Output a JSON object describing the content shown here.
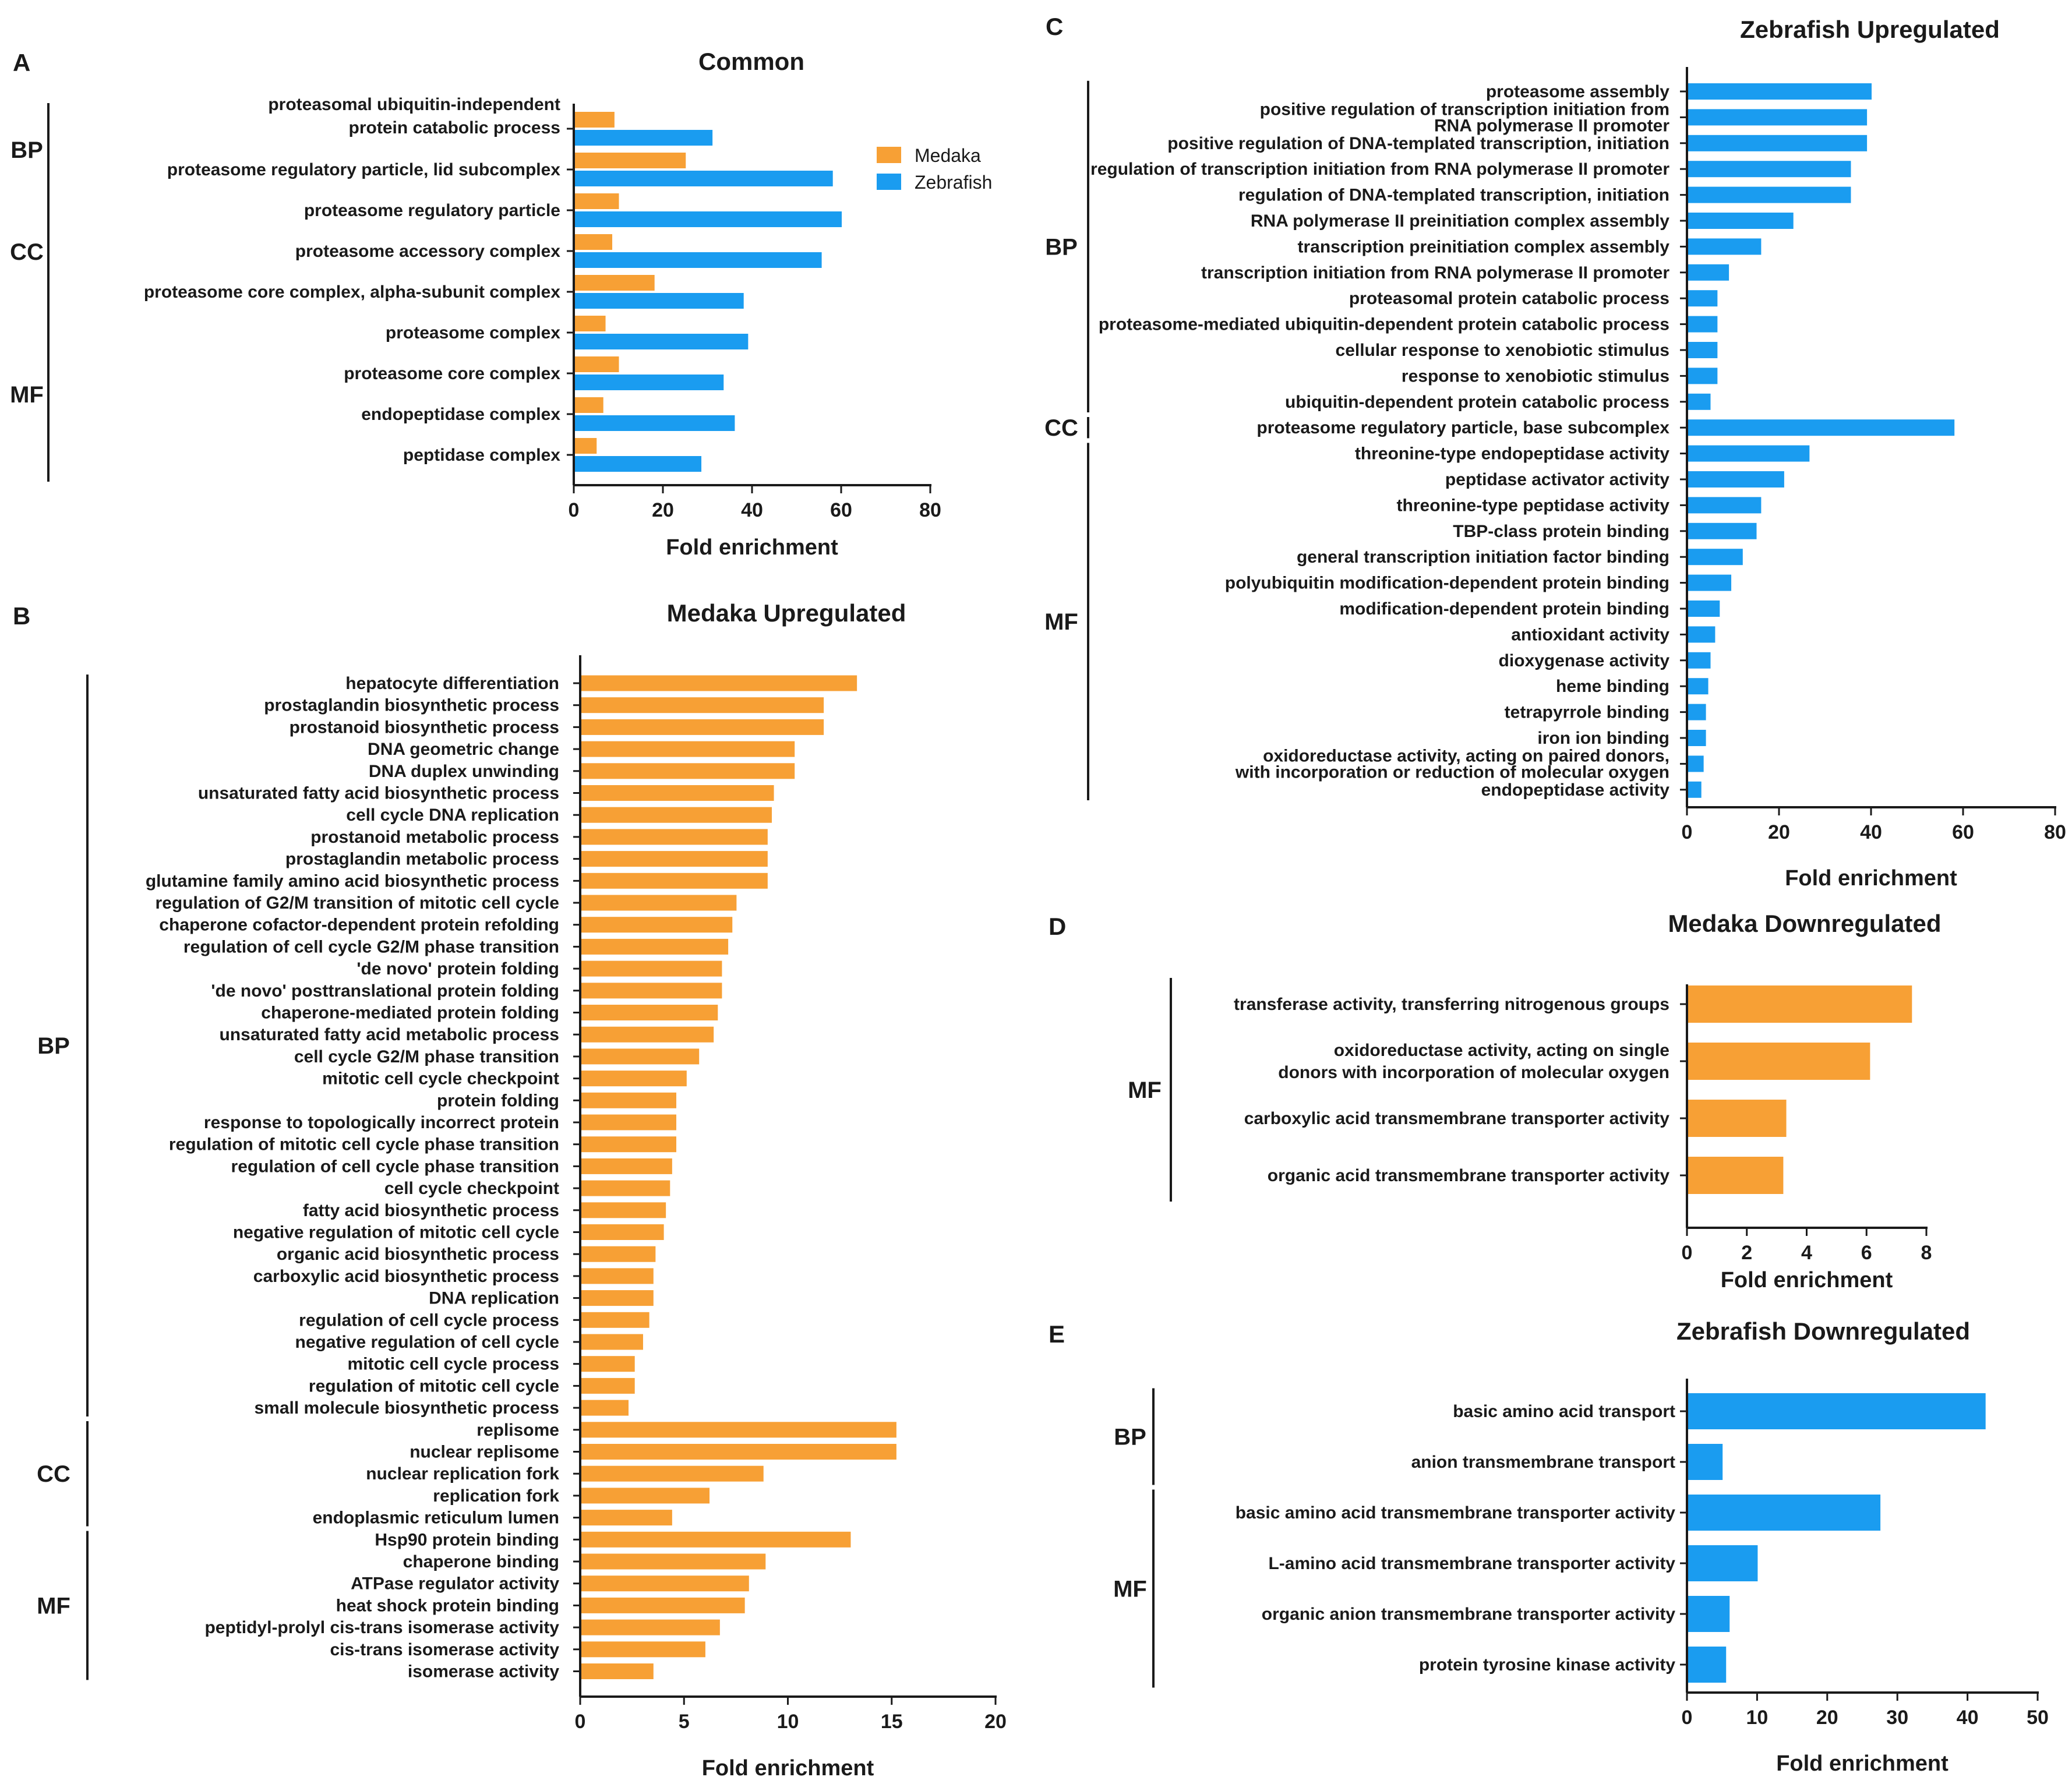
{
  "colors": {
    "medaka": "#f7a035",
    "zebrafish": "#1a9cf0",
    "axis": "#1a1a1a"
  },
  "legend": [
    "Medaka",
    "Zebrafish"
  ],
  "chart_data": [
    {
      "id": "A",
      "type": "bar",
      "orientation": "horizontal",
      "title": "Common",
      "xlabel": "Fold enrichment",
      "ylabel": "",
      "xlim": [
        0,
        80
      ],
      "xticks": [
        0,
        20,
        40,
        60,
        80
      ],
      "categories": [
        "proteasomal ubiquitin-independent protein catabolic process",
        "proteasome regulatory particle, lid subcomplex",
        "proteasome regulatory particle",
        "proteasome accessory complex",
        "proteasome core complex, alpha-subunit complex",
        "proteasome complex",
        "proteasome core complex",
        "endopeptidase complex",
        "peptidase complex"
      ],
      "category_lines": [
        [
          "proteasomal ubiquitin-independent",
          "protein catabolic process"
        ],
        [
          "proteasome regulatory particle, lid subcomplex"
        ],
        [
          "proteasome regulatory particle"
        ],
        [
          "proteasome accessory complex"
        ],
        [
          "proteasome core complex, alpha-subunit complex"
        ],
        [
          "proteasome complex"
        ],
        [
          "proteasome core complex"
        ],
        [
          "endopeptidase complex"
        ],
        [
          "peptidase complex"
        ]
      ],
      "series": [
        {
          "name": "Medaka",
          "values": [
            9,
            25,
            10,
            8.5,
            18,
            7,
            10,
            6.5,
            5
          ]
        },
        {
          "name": "Zebrafish",
          "values": [
            31,
            58,
            60,
            55.5,
            38,
            39,
            33.5,
            36,
            28.5
          ]
        }
      ],
      "groups": [
        {
          "label": "BP",
          "start": 0,
          "end": 1
        },
        {
          "label": "CC",
          "start": 2,
          "end": 4
        },
        {
          "label": "MF",
          "start": 5,
          "end": 8
        }
      ]
    },
    {
      "id": "B",
      "type": "bar",
      "orientation": "horizontal",
      "title": "Medaka Upregulated",
      "xlabel": "Fold enrichment",
      "ylabel": "",
      "xlim": [
        0,
        20
      ],
      "xticks": [
        0,
        5,
        10,
        15,
        20
      ],
      "categories": [
        "hepatocyte differentiation",
        "prostaglandin biosynthetic process",
        "prostanoid biosynthetic process",
        "DNA geometric change",
        "DNA duplex unwinding",
        "unsaturated fatty acid biosynthetic process",
        "cell cycle DNA replication",
        "prostanoid metabolic process",
        "prostaglandin metabolic process",
        "glutamine family amino acid biosynthetic process",
        "regulation of G2/M transition of mitotic cell cycle",
        "chaperone cofactor-dependent protein refolding",
        "regulation of cell cycle G2/M phase transition",
        "'de novo' protein folding",
        "'de novo' posttranslational protein folding",
        "chaperone-mediated protein folding",
        "unsaturated fatty acid metabolic process",
        "cell cycle G2/M phase transition",
        "mitotic cell cycle checkpoint",
        "protein folding",
        "response to topologically incorrect protein",
        "regulation of mitotic cell cycle phase transition",
        "regulation of cell cycle phase transition",
        "cell cycle checkpoint",
        "fatty acid biosynthetic process",
        "negative regulation of mitotic cell cycle",
        "organic acid biosynthetic process",
        "carboxylic acid biosynthetic process",
        "DNA replication",
        "regulation of cell cycle process",
        "negative regulation of cell cycle",
        "mitotic cell cycle process",
        "regulation of mitotic cell cycle",
        "small molecule biosynthetic process",
        "replisome",
        "nuclear replisome",
        "nuclear replication fork",
        "replication fork",
        "endoplasmic reticulum lumen",
        "Hsp90 protein binding",
        "chaperone binding",
        "ATPase regulator activity",
        "heat shock protein binding",
        "peptidyl-prolyl cis-trans isomerase activity",
        "cis-trans isomerase activity",
        "isomerase activity"
      ],
      "series": [
        {
          "name": "",
          "values": [
            13.3,
            11.7,
            11.7,
            10.3,
            10.3,
            9.3,
            9.2,
            9.0,
            9.0,
            9.0,
            7.5,
            7.3,
            7.1,
            6.8,
            6.8,
            6.6,
            6.4,
            5.7,
            5.1,
            4.6,
            4.6,
            4.6,
            4.4,
            4.3,
            4.1,
            4.0,
            3.6,
            3.5,
            3.5,
            3.3,
            3.0,
            2.6,
            2.6,
            2.3,
            15.2,
            15.2,
            8.8,
            6.2,
            4.4,
            13.0,
            8.9,
            8.1,
            7.9,
            6.7,
            6.0,
            3.5
          ]
        }
      ],
      "groups": [
        {
          "label": "BP",
          "start": 0,
          "end": 33
        },
        {
          "label": "CC",
          "start": 34,
          "end": 38
        },
        {
          "label": "MF",
          "start": 39,
          "end": 45
        }
      ]
    },
    {
      "id": "C",
      "type": "bar",
      "orientation": "horizontal",
      "title": "Zebrafish Upregulated",
      "xlabel": "Fold enrichment",
      "ylabel": "",
      "xlim": [
        0,
        80
      ],
      "xticks": [
        0,
        20,
        40,
        60,
        80
      ],
      "categories": [
        "proteasome assembly",
        "positive regulation of transcription initiation from RNA polymerase II promoter",
        "positive regulation of DNA-templated transcription, initiation",
        "regulation of transcription initiation from RNA polymerase II promoter",
        "regulation of DNA-templated transcription, initiation",
        "RNA polymerase II preinitiation complex assembly",
        "transcription preinitiation complex assembly",
        "transcription initiation from RNA polymerase II promoter",
        "proteasomal protein catabolic process",
        "proteasome-mediated ubiquitin-dependent protein catabolic process",
        "cellular response to xenobiotic stimulus",
        "response to xenobiotic stimulus",
        "ubiquitin-dependent protein catabolic process",
        "proteasome regulatory particle, base subcomplex",
        "threonine-type endopeptidase activity",
        "peptidase activator activity",
        "threonine-type peptidase activity",
        "TBP-class protein binding",
        "general transcription initiation factor binding",
        "polyubiquitin modification-dependent protein binding",
        "modification-dependent protein binding",
        "antioxidant activity",
        "dioxygenase activity",
        "heme binding",
        "tetrapyrrole binding",
        "iron ion binding",
        "oxidoreductase activity, acting on paired donors, with incorporation or reduction of molecular oxygen",
        "endopeptidase activity"
      ],
      "category_lines": [
        [
          "proteasome assembly"
        ],
        [
          "positive regulation of transcription initiation from",
          "RNA polymerase II promoter"
        ],
        [
          "positive regulation of DNA-templated transcription, initiation"
        ],
        [
          "regulation of transcription initiation from RNA polymerase II promoter"
        ],
        [
          "regulation of DNA-templated transcription, initiation"
        ],
        [
          "RNA polymerase II preinitiation complex assembly"
        ],
        [
          "transcription preinitiation complex assembly"
        ],
        [
          "transcription initiation from RNA polymerase II promoter"
        ],
        [
          "proteasomal protein catabolic process"
        ],
        [
          "proteasome-mediated ubiquitin-dependent protein catabolic process"
        ],
        [
          "cellular response to xenobiotic stimulus"
        ],
        [
          "response to xenobiotic stimulus"
        ],
        [
          "ubiquitin-dependent protein catabolic process"
        ],
        [
          "proteasome regulatory particle, base subcomplex"
        ],
        [
          "threonine-type endopeptidase activity"
        ],
        [
          "peptidase activator activity"
        ],
        [
          "threonine-type peptidase activity"
        ],
        [
          "TBP-class protein binding"
        ],
        [
          "general transcription initiation factor binding"
        ],
        [
          "polyubiquitin modification-dependent protein binding"
        ],
        [
          "modification-dependent protein binding"
        ],
        [
          "antioxidant activity"
        ],
        [
          "dioxygenase activity"
        ],
        [
          "heme binding"
        ],
        [
          "tetrapyrrole binding"
        ],
        [
          "iron ion binding"
        ],
        [
          "oxidoreductase activity, acting on paired donors,",
          "with incorporation or reduction of molecular oxygen"
        ],
        [
          "endopeptidase activity"
        ]
      ],
      "series": [
        {
          "name": "",
          "values": [
            40,
            39,
            39,
            35.5,
            35.5,
            23,
            16,
            9,
            6.5,
            6.5,
            6.5,
            6.5,
            5,
            58,
            26.5,
            21,
            16,
            15,
            12,
            9.5,
            7,
            6,
            5,
            4.5,
            4,
            4,
            3.5,
            3
          ]
        }
      ],
      "groups": [
        {
          "label": "BP",
          "start": 0,
          "end": 12
        },
        {
          "label": "CC",
          "start": 13,
          "end": 13
        },
        {
          "label": "MF",
          "start": 14,
          "end": 27
        }
      ]
    },
    {
      "id": "D",
      "type": "bar",
      "orientation": "horizontal",
      "title": "Medaka Downregulated",
      "xlabel": "Fold enrichment",
      "ylabel": "",
      "xlim": [
        0,
        8
      ],
      "xticks": [
        0,
        2,
        4,
        6,
        8
      ],
      "categories": [
        "transferase activity, transferring nitrogenous groups",
        "oxidoreductase activity, acting on single donors with incorporation of molecular oxygen",
        "carboxylic acid transmembrane transporter activity",
        "organic acid transmembrane transporter activity"
      ],
      "category_lines": [
        [
          "transferase activity, transferring nitrogenous groups"
        ],
        [
          "oxidoreductase activity, acting on single",
          "donors with incorporation of molecular oxygen"
        ],
        [
          "carboxylic acid transmembrane transporter activity"
        ],
        [
          "organic acid transmembrane transporter activity"
        ]
      ],
      "series": [
        {
          "name": "",
          "values": [
            7.5,
            6.1,
            3.3,
            3.2
          ]
        }
      ],
      "groups": [
        {
          "label": "MF",
          "start": 0,
          "end": 3
        }
      ]
    },
    {
      "id": "E",
      "type": "bar",
      "orientation": "horizontal",
      "title": "Zebrafish Downregulated",
      "xlabel": "Fold enrichment",
      "ylabel": "",
      "xlim": [
        0,
        50
      ],
      "xticks": [
        0,
        10,
        20,
        30,
        40,
        50
      ],
      "categories": [
        "basic amino acid transport",
        "anion transmembrane transport",
        "basic amino acid transmembrane transporter activity",
        "L-amino acid transmembrane transporter activity",
        "organic anion transmembrane transporter activity",
        "protein tyrosine kinase activity"
      ],
      "series": [
        {
          "name": "",
          "values": [
            42.5,
            5,
            27.5,
            10,
            6,
            5.5
          ]
        }
      ],
      "groups": [
        {
          "label": "BP",
          "start": 0,
          "end": 1
        },
        {
          "label": "MF",
          "start": 2,
          "end": 5
        }
      ]
    }
  ]
}
